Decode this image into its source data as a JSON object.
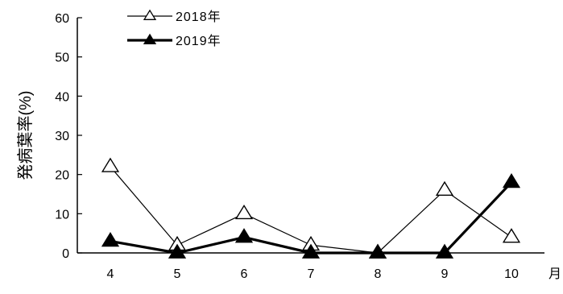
{
  "chart_data": {
    "type": "line",
    "ylabel": "発病葉率(%)",
    "xlabel": "月",
    "categories": [
      "4",
      "5",
      "6",
      "7",
      "8",
      "9",
      "10"
    ],
    "ylim": [
      0,
      60
    ],
    "yticks": [
      0,
      10,
      20,
      30,
      40,
      50,
      60
    ],
    "grid": false,
    "legend_position": "top-left",
    "series": [
      {
        "name": "2018年",
        "values": [
          22,
          2,
          10,
          2,
          0,
          16,
          4
        ],
        "marker": "open-triangle",
        "line": "thin",
        "color": "#000000"
      },
      {
        "name": "2019年",
        "values": [
          3,
          0,
          4,
          0,
          0,
          0,
          18
        ],
        "marker": "filled-triangle",
        "line": "thick",
        "color": "#000000"
      }
    ]
  }
}
